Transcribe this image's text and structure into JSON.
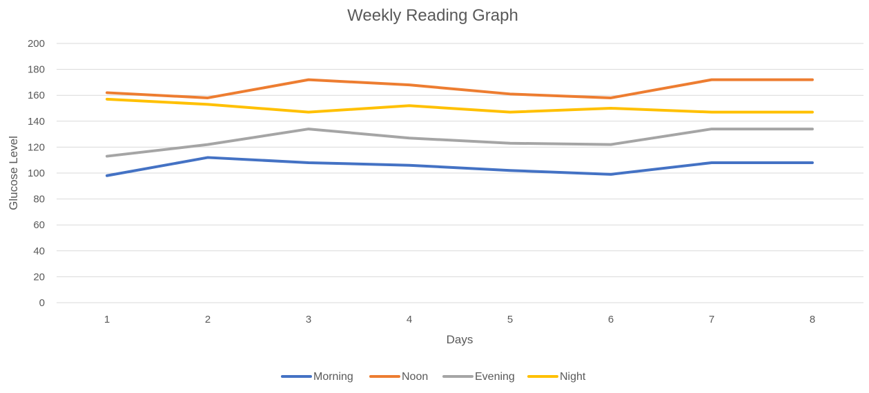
{
  "chart_data": {
    "type": "line",
    "title": "Weekly Reading Graph",
    "xlabel": "Days",
    "ylabel": "Glucose Level",
    "x": [
      1,
      2,
      3,
      4,
      5,
      6,
      7,
      8
    ],
    "ylim": [
      0,
      200
    ],
    "yticks": [
      0,
      20,
      40,
      60,
      80,
      100,
      120,
      140,
      160,
      180,
      200
    ],
    "grid": true,
    "legend_position": "bottom",
    "series": [
      {
        "name": "Morning",
        "color": "#4472C4",
        "values": [
          98,
          112,
          108,
          106,
          102,
          99,
          108,
          108
        ]
      },
      {
        "name": "Noon",
        "color": "#ED7D31",
        "values": [
          162,
          158,
          172,
          168,
          161,
          158,
          172,
          172
        ]
      },
      {
        "name": "Evening",
        "color": "#A5A5A5",
        "values": [
          113,
          122,
          134,
          127,
          123,
          122,
          134,
          134
        ]
      },
      {
        "name": "Night",
        "color": "#FFC000",
        "values": [
          157,
          153,
          147,
          152,
          147,
          150,
          147,
          147
        ]
      }
    ]
  }
}
